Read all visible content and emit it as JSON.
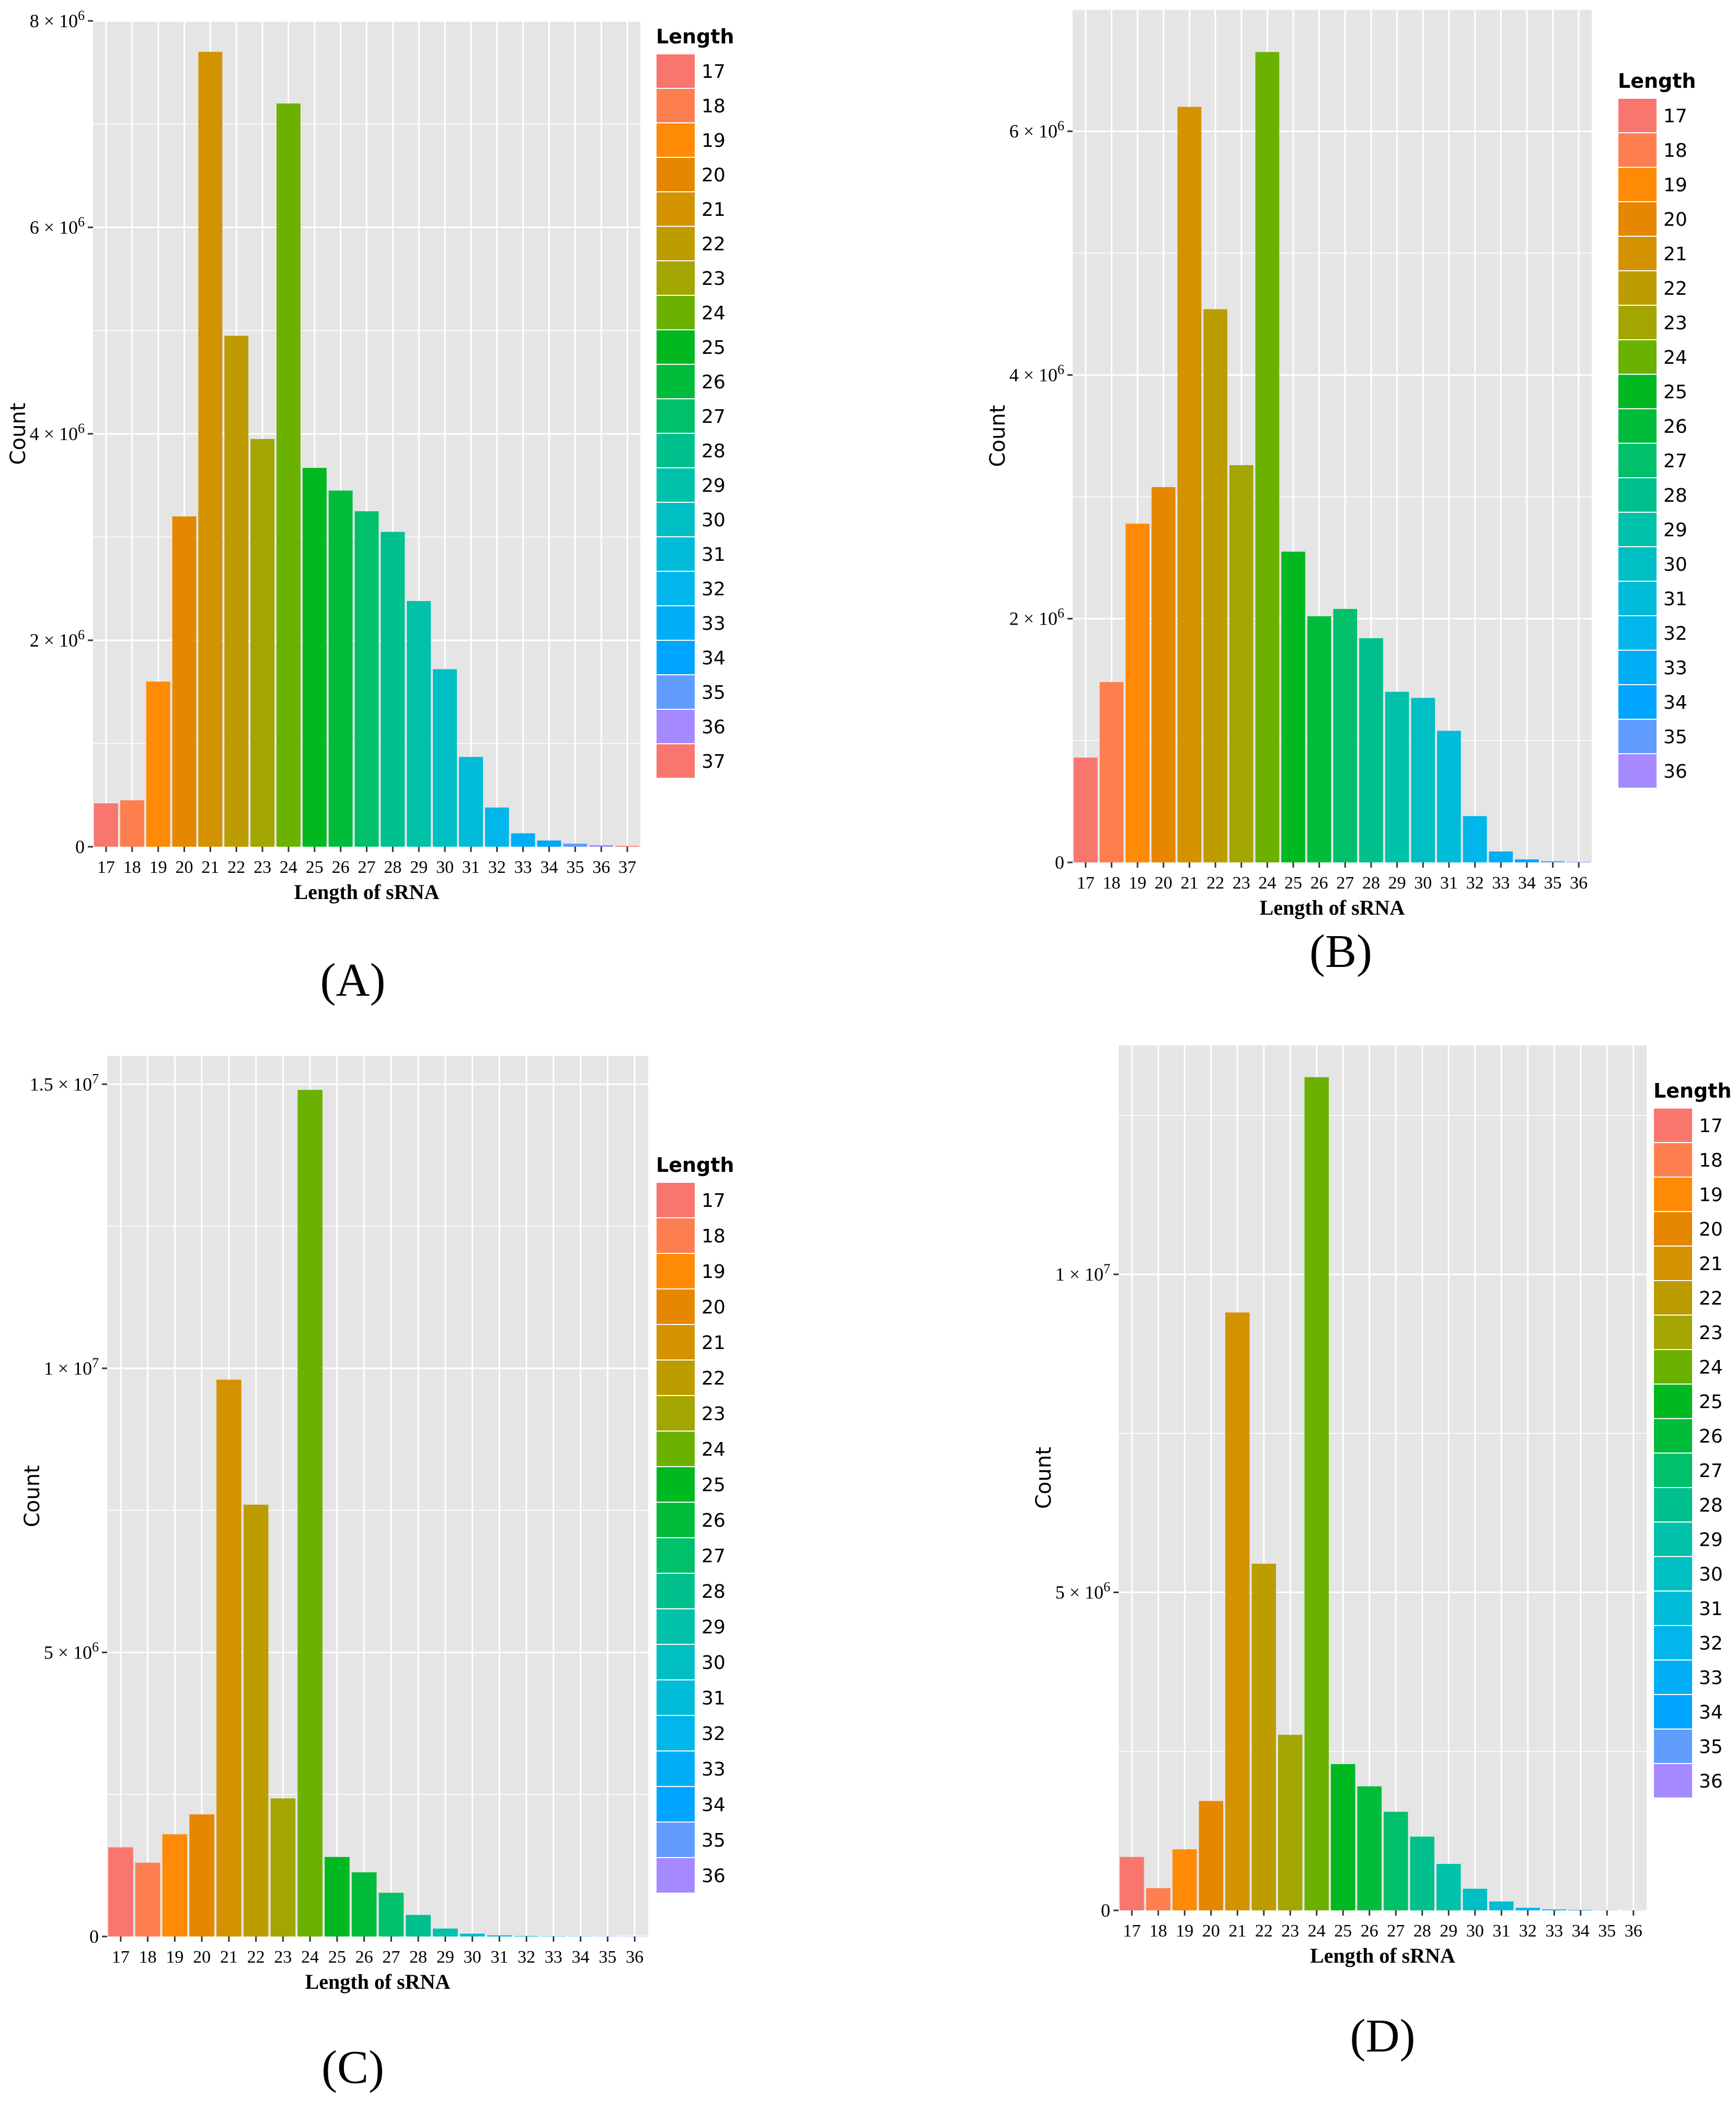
{
  "figure": {
    "panel_letters": [
      "(A)",
      "(B)",
      "(C)",
      "(D)"
    ]
  },
  "colors": {
    "panel_bg": "#e5e5e5",
    "grid": "#ffffff",
    "text": "#000000",
    "palette": [
      "#f8766d",
      "#fd7f4f",
      "#ff8a05",
      "#e58700",
      "#d39200",
      "#bd9c00",
      "#a3a500",
      "#6bb100",
      "#00b81f",
      "#00bc3a",
      "#00c06b",
      "#00c08d",
      "#00c1a9",
      "#00bfc4",
      "#00bcd8",
      "#00b6eb",
      "#00aef6",
      "#00a5ff",
      "#619cff",
      "#a58aff"
    ]
  },
  "chart_data": [
    {
      "id": "A",
      "type": "bar",
      "title": "",
      "xlabel": "Length of sRNA",
      "ylabel": "Count",
      "legend_title": "Length",
      "legend_position": "right",
      "categories": [
        "17",
        "18",
        "19",
        "20",
        "21",
        "22",
        "23",
        "24",
        "25",
        "26",
        "27",
        "28",
        "29",
        "30",
        "31",
        "32",
        "33",
        "34",
        "35",
        "36",
        "37"
      ],
      "values": [
        420000,
        450000,
        1600000,
        3200000,
        7700000,
        4950000,
        3950000,
        7200000,
        3670000,
        3450000,
        3250000,
        3050000,
        2380000,
        1720000,
        870000,
        380000,
        130000,
        60000,
        30000,
        15000,
        8000
      ],
      "ylim": [
        0,
        8000000
      ],
      "yticks": [
        {
          "value": 0,
          "base": "0",
          "exp": ""
        },
        {
          "value": 2000000,
          "base": "2 × 10",
          "exp": "6"
        },
        {
          "value": 4000000,
          "base": "4 × 10",
          "exp": "6"
        },
        {
          "value": 6000000,
          "base": "6 × 10",
          "exp": "6"
        },
        {
          "value": 8000000,
          "base": "8 × 10",
          "exp": "6"
        }
      ],
      "legend_entries": [
        "17",
        "18",
        "19",
        "20",
        "21",
        "22",
        "23",
        "24",
        "25",
        "26",
        "27",
        "28",
        "29",
        "30",
        "31",
        "32",
        "33",
        "34",
        "35",
        "36",
        "37"
      ]
    },
    {
      "id": "B",
      "type": "bar",
      "title": "",
      "xlabel": "Length of sRNA",
      "ylabel": "Count",
      "legend_title": "Length",
      "legend_position": "right",
      "categories": [
        "17",
        "18",
        "19",
        "20",
        "21",
        "22",
        "23",
        "24",
        "25",
        "26",
        "27",
        "28",
        "29",
        "30",
        "31",
        "32",
        "33",
        "34",
        "35",
        "36"
      ],
      "values": [
        860000,
        1480000,
        2780000,
        3080000,
        6200000,
        4540000,
        3260000,
        6650000,
        2550000,
        2020000,
        2080000,
        1840000,
        1400000,
        1350000,
        1080000,
        380000,
        90000,
        25000,
        10000,
        5000
      ],
      "ylim": [
        0,
        7000000
      ],
      "yticks": [
        {
          "value": 0,
          "base": "0",
          "exp": ""
        },
        {
          "value": 2000000,
          "base": "2 × 10",
          "exp": "6"
        },
        {
          "value": 4000000,
          "base": "4 × 10",
          "exp": "6"
        },
        {
          "value": 6000000,
          "base": "6 × 10",
          "exp": "6"
        }
      ],
      "legend_entries": [
        "17",
        "18",
        "19",
        "20",
        "21",
        "22",
        "23",
        "24",
        "25",
        "26",
        "27",
        "28",
        "29",
        "30",
        "31",
        "32",
        "33",
        "34",
        "35",
        "36"
      ]
    },
    {
      "id": "C",
      "type": "bar",
      "title": "",
      "xlabel": "Length of sRNA",
      "ylabel": "Count",
      "legend_title": "Length",
      "legend_position": "right",
      "categories": [
        "17",
        "18",
        "19",
        "20",
        "21",
        "22",
        "23",
        "24",
        "25",
        "26",
        "27",
        "28",
        "29",
        "30",
        "31",
        "32",
        "33",
        "34",
        "35",
        "36"
      ],
      "values": [
        1570000,
        1300000,
        1800000,
        2150000,
        9800000,
        7600000,
        2430000,
        14900000,
        1400000,
        1130000,
        770000,
        380000,
        140000,
        50000,
        20000,
        10000,
        6000,
        4000,
        2000,
        1000
      ],
      "ylim": [
        0,
        15500000
      ],
      "yticks": [
        {
          "value": 0,
          "base": "0",
          "exp": ""
        },
        {
          "value": 5000000,
          "base": "5 × 10",
          "exp": "6"
        },
        {
          "value": 10000000,
          "base": "1 × 10",
          "exp": "7"
        },
        {
          "value": 15000000,
          "base": "1.5 × 10",
          "exp": "7"
        }
      ],
      "legend_entries": [
        "17",
        "18",
        "19",
        "20",
        "21",
        "22",
        "23",
        "24",
        "25",
        "26",
        "27",
        "28",
        "29",
        "30",
        "31",
        "32",
        "33",
        "34",
        "35",
        "36"
      ]
    },
    {
      "id": "D",
      "type": "bar",
      "title": "",
      "xlabel": "Length of sRNA",
      "ylabel": "Count",
      "legend_title": "Length",
      "legend_position": "right",
      "categories": [
        "17",
        "18",
        "19",
        "20",
        "21",
        "22",
        "23",
        "24",
        "25",
        "26",
        "27",
        "28",
        "29",
        "30",
        "31",
        "32",
        "33",
        "34",
        "35",
        "36"
      ],
      "values": [
        840000,
        350000,
        960000,
        1720000,
        9400000,
        5450000,
        2760000,
        13100000,
        2300000,
        1950000,
        1550000,
        1160000,
        730000,
        340000,
        140000,
        40000,
        15000,
        8000,
        4000,
        2000
      ],
      "ylim": [
        0,
        13600000
      ],
      "yticks": [
        {
          "value": 0,
          "base": "0",
          "exp": ""
        },
        {
          "value": 5000000,
          "base": "5 × 10",
          "exp": "6"
        },
        {
          "value": 10000000,
          "base": "1 × 10",
          "exp": "7"
        }
      ],
      "legend_entries": [
        "17",
        "18",
        "19",
        "20",
        "21",
        "22",
        "23",
        "24",
        "25",
        "26",
        "27",
        "28",
        "29",
        "30",
        "31",
        "32",
        "33",
        "34",
        "35",
        "36"
      ]
    }
  ]
}
